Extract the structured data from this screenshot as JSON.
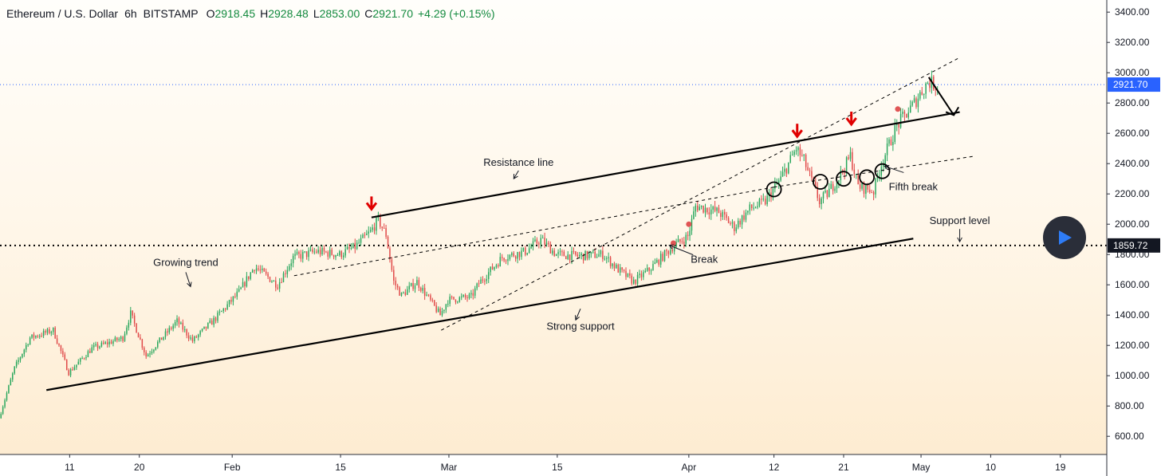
{
  "header": {
    "symbol": "Ethereum / U.S. Dollar",
    "interval": "6h",
    "exchange": "BITSTAMP",
    "o_label": "O",
    "o": "2918.45",
    "h_label": "H",
    "h": "2928.48",
    "l_label": "L",
    "l": "2853.00",
    "c_label": "C",
    "c": "2921.70",
    "change": "+4.29 (+0.15%)"
  },
  "colors": {
    "up": "#26a65b",
    "down": "#e04848",
    "price_line": "#2962ff",
    "annotation": "#000000",
    "arrow_red": "#e00000",
    "marker_red": "#e05555"
  },
  "chart_data": {
    "type": "candlestick",
    "symbol": "ETH/USD",
    "interval": "6h",
    "y_axis": {
      "ticks": [
        600,
        800,
        1000,
        1200,
        1400,
        1600,
        1800,
        2000,
        2200,
        2400,
        2600,
        2800,
        3000,
        3200,
        3400
      ],
      "tick_labels": [
        "600.00",
        "800.00",
        "1000.00",
        "1200.00",
        "1400.00",
        "1600.00",
        "1800.00",
        "2000.00",
        "2200.00",
        "2400.00",
        "2600.00",
        "2800.00",
        "3000.00",
        "3200.00",
        "3400.00"
      ],
      "range": [
        480,
        3480
      ]
    },
    "x_axis": {
      "ticks": [
        {
          "date": "2021-01-11",
          "label": "11"
        },
        {
          "date": "2021-01-20",
          "label": "20"
        },
        {
          "date": "2021-02-01",
          "label": "Feb"
        },
        {
          "date": "2021-02-15",
          "label": "15"
        },
        {
          "date": "2021-03-01",
          "label": "Mar"
        },
        {
          "date": "2021-03-15",
          "label": "15"
        },
        {
          "date": "2021-04-01",
          "label": "Apr"
        },
        {
          "date": "2021-04-12",
          "label": "12"
        },
        {
          "date": "2021-04-21",
          "label": "21"
        },
        {
          "date": "2021-05-01",
          "label": "May"
        },
        {
          "date": "2021-05-10",
          "label": "10"
        },
        {
          "date": "2021-05-19",
          "label": "19"
        }
      ],
      "range": [
        "2021-01-02",
        "2021-05-25"
      ]
    },
    "price_path": [
      {
        "date": "2021-01-02",
        "price": 720
      },
      {
        "date": "2021-01-04",
        "price": 1050
      },
      {
        "date": "2021-01-06",
        "price": 1250
      },
      {
        "date": "2021-01-09",
        "price": 1300
      },
      {
        "date": "2021-01-11",
        "price": 1020
      },
      {
        "date": "2021-01-14",
        "price": 1180
      },
      {
        "date": "2021-01-18",
        "price": 1250
      },
      {
        "date": "2021-01-19",
        "price": 1410
      },
      {
        "date": "2021-01-21",
        "price": 1130
      },
      {
        "date": "2021-01-25",
        "price": 1360
      },
      {
        "date": "2021-01-27",
        "price": 1230
      },
      {
        "date": "2021-01-30",
        "price": 1380
      },
      {
        "date": "2021-02-02",
        "price": 1550
      },
      {
        "date": "2021-02-04",
        "price": 1720
      },
      {
        "date": "2021-02-07",
        "price": 1600
      },
      {
        "date": "2021-02-09",
        "price": 1780
      },
      {
        "date": "2021-02-12",
        "price": 1820
      },
      {
        "date": "2021-02-15",
        "price": 1800
      },
      {
        "date": "2021-02-17",
        "price": 1850
      },
      {
        "date": "2021-02-19",
        "price": 1950
      },
      {
        "date": "2021-02-20",
        "price": 2030
      },
      {
        "date": "2021-02-21",
        "price": 1930
      },
      {
        "date": "2021-02-22",
        "price": 1620
      },
      {
        "date": "2021-02-23",
        "price": 1530
      },
      {
        "date": "2021-02-25",
        "price": 1620
      },
      {
        "date": "2021-02-28",
        "price": 1400
      },
      {
        "date": "2021-03-01",
        "price": 1500
      },
      {
        "date": "2021-03-04",
        "price": 1520
      },
      {
        "date": "2021-03-05",
        "price": 1610
      },
      {
        "date": "2021-03-08",
        "price": 1780
      },
      {
        "date": "2021-03-11",
        "price": 1820
      },
      {
        "date": "2021-03-13",
        "price": 1900
      },
      {
        "date": "2021-03-15",
        "price": 1800
      },
      {
        "date": "2021-03-18",
        "price": 1790
      },
      {
        "date": "2021-03-21",
        "price": 1800
      },
      {
        "date": "2021-03-23",
        "price": 1700
      },
      {
        "date": "2021-03-25",
        "price": 1620
      },
      {
        "date": "2021-03-27",
        "price": 1700
      },
      {
        "date": "2021-03-30",
        "price": 1850
      },
      {
        "date": "2021-04-01",
        "price": 1920
      },
      {
        "date": "2021-04-02",
        "price": 2120
      },
      {
        "date": "2021-04-05",
        "price": 2080
      },
      {
        "date": "2021-04-07",
        "price": 1980
      },
      {
        "date": "2021-04-09",
        "price": 2100
      },
      {
        "date": "2021-04-11",
        "price": 2150
      },
      {
        "date": "2021-04-13",
        "price": 2300
      },
      {
        "date": "2021-04-15",
        "price": 2500
      },
      {
        "date": "2021-04-16",
        "price": 2420
      },
      {
        "date": "2021-04-18",
        "price": 2150
      },
      {
        "date": "2021-04-19",
        "price": 2200
      },
      {
        "date": "2021-04-21",
        "price": 2350
      },
      {
        "date": "2021-04-22",
        "price": 2450
      },
      {
        "date": "2021-04-23",
        "price": 2250
      },
      {
        "date": "2021-04-25",
        "price": 2220
      },
      {
        "date": "2021-04-26",
        "price": 2400
      },
      {
        "date": "2021-04-28",
        "price": 2650
      },
      {
        "date": "2021-04-30",
        "price": 2780
      },
      {
        "date": "2021-05-02",
        "price": 2940
      },
      {
        "date": "2021-05-03",
        "price": 2920
      }
    ],
    "last_price": 2921.7,
    "last_price_label": "2921.70",
    "support_level": 1859.72,
    "support_level_label": "1859.72",
    "trendlines": [
      {
        "name": "resistance-line",
        "style": "solid",
        "points": [
          {
            "date": "2021-02-19",
            "price": 2045
          },
          {
            "date": "2021-05-06",
            "price": 2740
          }
        ]
      },
      {
        "name": "strong-support-line",
        "style": "solid",
        "points": [
          {
            "date": "2021-01-08",
            "price": 905
          },
          {
            "date": "2021-04-30",
            "price": 1905
          }
        ]
      },
      {
        "name": "upper-channel-dashed",
        "style": "dashed",
        "points": [
          {
            "date": "2021-02-28",
            "price": 1300
          },
          {
            "date": "2021-05-06",
            "price": 3100
          }
        ]
      },
      {
        "name": "mid-trend-dashed",
        "style": "dashed",
        "points": [
          {
            "date": "2021-02-09",
            "price": 1660
          },
          {
            "date": "2021-04-12",
            "price": 2245
          }
        ]
      },
      {
        "name": "fifth-break-dashed",
        "style": "dashed",
        "points": [
          {
            "date": "2021-04-12",
            "price": 2245
          },
          {
            "date": "2021-05-08",
            "price": 2450
          }
        ]
      }
    ],
    "arrows_down": [
      {
        "date": "2021-02-19",
        "price": 2120
      },
      {
        "date": "2021-04-15",
        "price": 2600
      },
      {
        "date": "2021-04-22",
        "price": 2680
      }
    ],
    "break_circles": [
      {
        "date": "2021-04-12",
        "price": 2230
      },
      {
        "date": "2021-04-18",
        "price": 2280
      },
      {
        "date": "2021-04-21",
        "price": 2300
      },
      {
        "date": "2021-04-24",
        "price": 2310
      },
      {
        "date": "2021-04-26",
        "price": 2350
      }
    ],
    "red_dots": [
      {
        "date": "2021-03-30",
        "price": 1875
      },
      {
        "date": "2021-04-01",
        "price": 2000
      },
      {
        "date": "2021-04-28",
        "price": 2760
      }
    ],
    "projection_arrow": [
      {
        "date": "2021-05-02",
        "price": 2970
      },
      {
        "date": "2021-05-04",
        "price": 2720
      }
    ],
    "annotations": [
      {
        "text": "Growing trend",
        "date": "2021-01-26",
        "price": 1725
      },
      {
        "text": "Resistance line",
        "date": "2021-03-10",
        "price": 2385
      },
      {
        "text": "Strong support",
        "date": "2021-03-18",
        "price": 1305
      },
      {
        "text": "Break",
        "date": "2021-04-03",
        "price": 1745
      },
      {
        "text": "Fifth break",
        "date": "2021-04-30",
        "price": 2225
      },
      {
        "text": "Support level",
        "date": "2021-05-06",
        "price": 2000
      }
    ]
  }
}
